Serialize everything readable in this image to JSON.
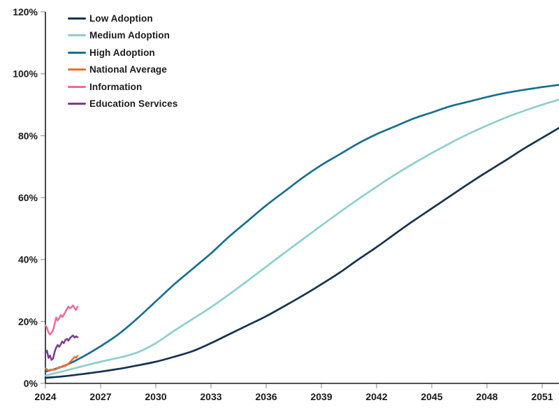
{
  "chart_data": {
    "type": "line",
    "title": "",
    "xlabel": "",
    "ylabel": "",
    "grid": false,
    "legend_position": "top-left",
    "x_axis": {
      "tick_years": [
        2024,
        2027,
        2030,
        2033,
        2036,
        2039,
        2042,
        2045,
        2048,
        2051
      ],
      "range": [
        2024,
        2052
      ]
    },
    "y_axis": {
      "tick_values": [
        0,
        20,
        40,
        60,
        80,
        100,
        120
      ],
      "tick_labels": [
        "0%",
        "20%",
        "40%",
        "60%",
        "80%",
        "100%",
        "120%"
      ],
      "range": [
        0,
        120
      ],
      "unit": "%"
    },
    "series": [
      {
        "id": "low-adoption",
        "name": "Low Adoption",
        "color": "#14334F",
        "unit": "%",
        "x_start": 2024,
        "x_step": 1,
        "smooth": true,
        "values": [
          1.8,
          2.3,
          3.0,
          3.8,
          4.7,
          5.8,
          7.0,
          8.6,
          10.4,
          13.0,
          15.9,
          18.8,
          21.7,
          25.0,
          28.4,
          32.0,
          35.8,
          40.0,
          44.0,
          48.3,
          52.5,
          56.5,
          60.5,
          64.5,
          68.3,
          72.0,
          75.8,
          79.3,
          82.8
        ]
      },
      {
        "id": "medium-adoption",
        "name": "Medium Adoption",
        "color": "#8DCFCE",
        "unit": "%",
        "x_start": 2024,
        "x_step": 1,
        "smooth": true,
        "values": [
          2.5,
          4.0,
          5.5,
          7.0,
          8.3,
          10.0,
          13.0,
          17.0,
          20.8,
          24.6,
          28.8,
          33.2,
          37.7,
          42.2,
          46.6,
          51.0,
          55.3,
          59.5,
          63.5,
          67.4,
          71.0,
          74.4,
          77.6,
          80.6,
          83.3,
          85.8,
          88.0,
          90.0,
          91.8
        ]
      },
      {
        "id": "high-adoption",
        "name": "High Adoption",
        "color": "#17708E",
        "unit": "%",
        "x_start": 2024,
        "x_step": 1,
        "smooth": true,
        "values": [
          3.8,
          5.6,
          8.5,
          12.0,
          16.0,
          21.0,
          26.5,
          32.0,
          37.0,
          42.0,
          47.5,
          52.5,
          57.5,
          62.0,
          66.5,
          70.5,
          74.0,
          77.5,
          80.5,
          83.0,
          85.5,
          87.5,
          89.5,
          91.0,
          92.5,
          93.8,
          94.8,
          95.7,
          96.5
        ]
      },
      {
        "id": "national-average",
        "name": "National Average",
        "color": "#F36D2D",
        "unit": "%",
        "x_start": 2024,
        "x_step": 0.0833,
        "smooth": false,
        "values": [
          4.8,
          4.5,
          4.2,
          4.4,
          4.3,
          4.5,
          4.4,
          4.6,
          4.9,
          5.3,
          5.2,
          5.5,
          5.8,
          5.6,
          6.0,
          6.4,
          6.9,
          7.4,
          8.0,
          8.5,
          8.3,
          8.9
        ]
      },
      {
        "id": "information",
        "name": "Information",
        "color": "#F4679E",
        "unit": "%",
        "x_start": 2024,
        "x_step": 0.0833,
        "smooth": false,
        "values": [
          18.7,
          18.0,
          16.4,
          15.8,
          16.4,
          17.2,
          19.2,
          21.3,
          20.3,
          21.0,
          22.1,
          21.4,
          22.2,
          23.1,
          24.0,
          24.8,
          24.2,
          24.6,
          25.2,
          24.3,
          23.7,
          24.8
        ]
      },
      {
        "id": "education-services",
        "name": "Education Services",
        "color": "#7E3A8F",
        "unit": "%",
        "x_start": 2024,
        "x_step": 0.0833,
        "smooth": false,
        "values": [
          9.8,
          10.6,
          8.2,
          9.0,
          7.6,
          8.0,
          10.2,
          11.6,
          12.4,
          11.8,
          12.6,
          13.5,
          13.0,
          14.0,
          14.4,
          13.8,
          14.6,
          15.1,
          15.5,
          14.8,
          15.2,
          14.9
        ]
      }
    ]
  },
  "colors": {
    "background": "#FFFFFF",
    "axis_line": "#1A1A1A",
    "tick_mark": "#9B9B9B",
    "label_text": "#1A1A1A"
  }
}
